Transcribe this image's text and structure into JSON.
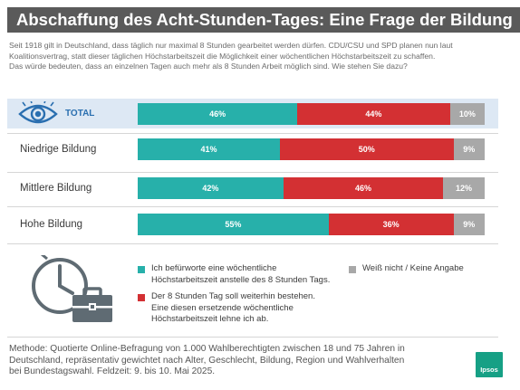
{
  "title": "Abschaffung des Acht-Stunden-Tages: Eine Frage der Bildung",
  "intro_lines": [
    "Seit 1918 gilt in Deutschland, dass täglich nur maximal 8 Stunden gearbeitet werden dürfen. CDU/CSU und SPD planen nun laut",
    "Koalitionsvertrag, statt dieser täglichen Höchstarbeitszeit die Möglichkeit einer wöchentlichen Höchstarbeitszeit zu schaffen.",
    "Das würde bedeuten, dass an einzelnen Tagen auch mehr als 8 Stunden Arbeit möglich sind. Wie stehen Sie dazu?"
  ],
  "colors": {
    "teal": "#27b0aa",
    "red": "#d33033",
    "gray": "#a8a8a8",
    "total_band": "#dde8f4",
    "eye": "#2a6fb0",
    "icon": "#5f6b73"
  },
  "icons": {
    "total_row": "eye-icon",
    "legend": "clock-briefcase-icon",
    "brand": "ipsos-logo"
  },
  "chart_data": {
    "type": "bar",
    "orientation": "horizontal-stacked-100",
    "categories": [
      "TOTAL",
      "Niedrige Bildung",
      "Mittlere Bildung",
      "Hohe Bildung"
    ],
    "series": [
      {
        "name": "Ich befürworte eine wöchentliche Höchstarbeitszeit anstelle des 8 Stunden Tags.",
        "color": "#27b0aa",
        "values": [
          46,
          41,
          42,
          55
        ]
      },
      {
        "name": "Der 8 Stunden Tag soll weiterhin bestehen. Eine diesen ersetzende wöchentliche Höchstarbeitszeit lehne ich ab.",
        "color": "#d33033",
        "values": [
          44,
          50,
          46,
          36
        ]
      },
      {
        "name": "Weiß nicht / Keine Angabe",
        "color": "#a8a8a8",
        "values": [
          10,
          9,
          12,
          9
        ]
      }
    ],
    "unit": "%"
  },
  "legend": {
    "item1_lines": [
      "Ich befürworte eine wöchentliche",
      "Höchstarbeitszeit anstelle des 8 Stunden Tags."
    ],
    "item2_lines": [
      "Der 8 Stunden Tag soll weiterhin bestehen.",
      "Eine diesen ersetzende wöchentliche",
      "Höchstarbeitszeit lehne ich ab."
    ],
    "item3_lines": [
      "Weiß nicht / Keine Angabe"
    ]
  },
  "method_lines": [
    "Methode: Quotierte Online-Befragung von 1.000 Wahlberechtigten zwischen 18 und 75 Jahren in",
    "Deutschland, repräsentativ gewichtet nach Alter, Geschlecht, Bildung, Region und Wahlverhalten",
    "bei Bundestagswahl. Feldzeit: 9. bis 10. Mai 2025."
  ],
  "logo_text": "Ipsos"
}
